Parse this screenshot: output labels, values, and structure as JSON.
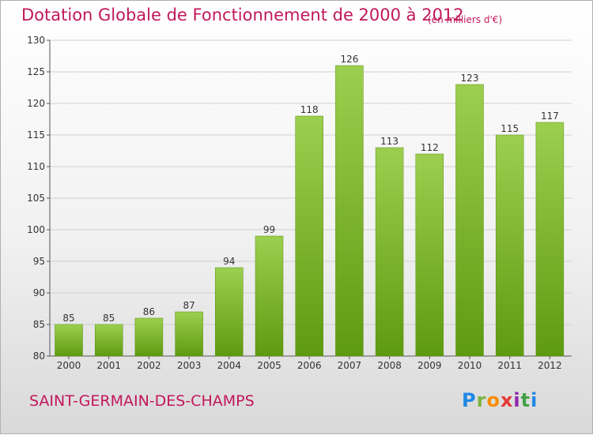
{
  "header": {
    "title": "Dotation Globale de Fonctionnement de 2000 à 2012",
    "unit": "(en milliers d'€)"
  },
  "footer": {
    "commune": "SAINT-GERMAIN-DES-CHAMPS",
    "logo_text": "Proxiti",
    "logo_letters": [
      "P",
      "r",
      "o",
      "x",
      "i",
      "t",
      "i"
    ]
  },
  "colors": {
    "title": "#c2185b",
    "bar_top": "#9ccf4f",
    "bar_bottom": "#5e9a10",
    "grid": "#d0d0d0"
  },
  "chart_data": {
    "type": "bar",
    "title": "Dotation Globale de Fonctionnement de 2000 à 2012",
    "xlabel": "",
    "ylabel": "",
    "categories": [
      "2000",
      "2001",
      "2002",
      "2003",
      "2004",
      "2005",
      "2006",
      "2007",
      "2008",
      "2009",
      "2010",
      "2011",
      "2012"
    ],
    "values": [
      85,
      85,
      86,
      87,
      94,
      99,
      118,
      126,
      113,
      112,
      123,
      115,
      117
    ],
    "ylim": [
      80,
      130
    ],
    "yticks": [
      80,
      85,
      90,
      95,
      100,
      105,
      110,
      115,
      120,
      125,
      130
    ],
    "grid": true,
    "data_labels": true
  }
}
